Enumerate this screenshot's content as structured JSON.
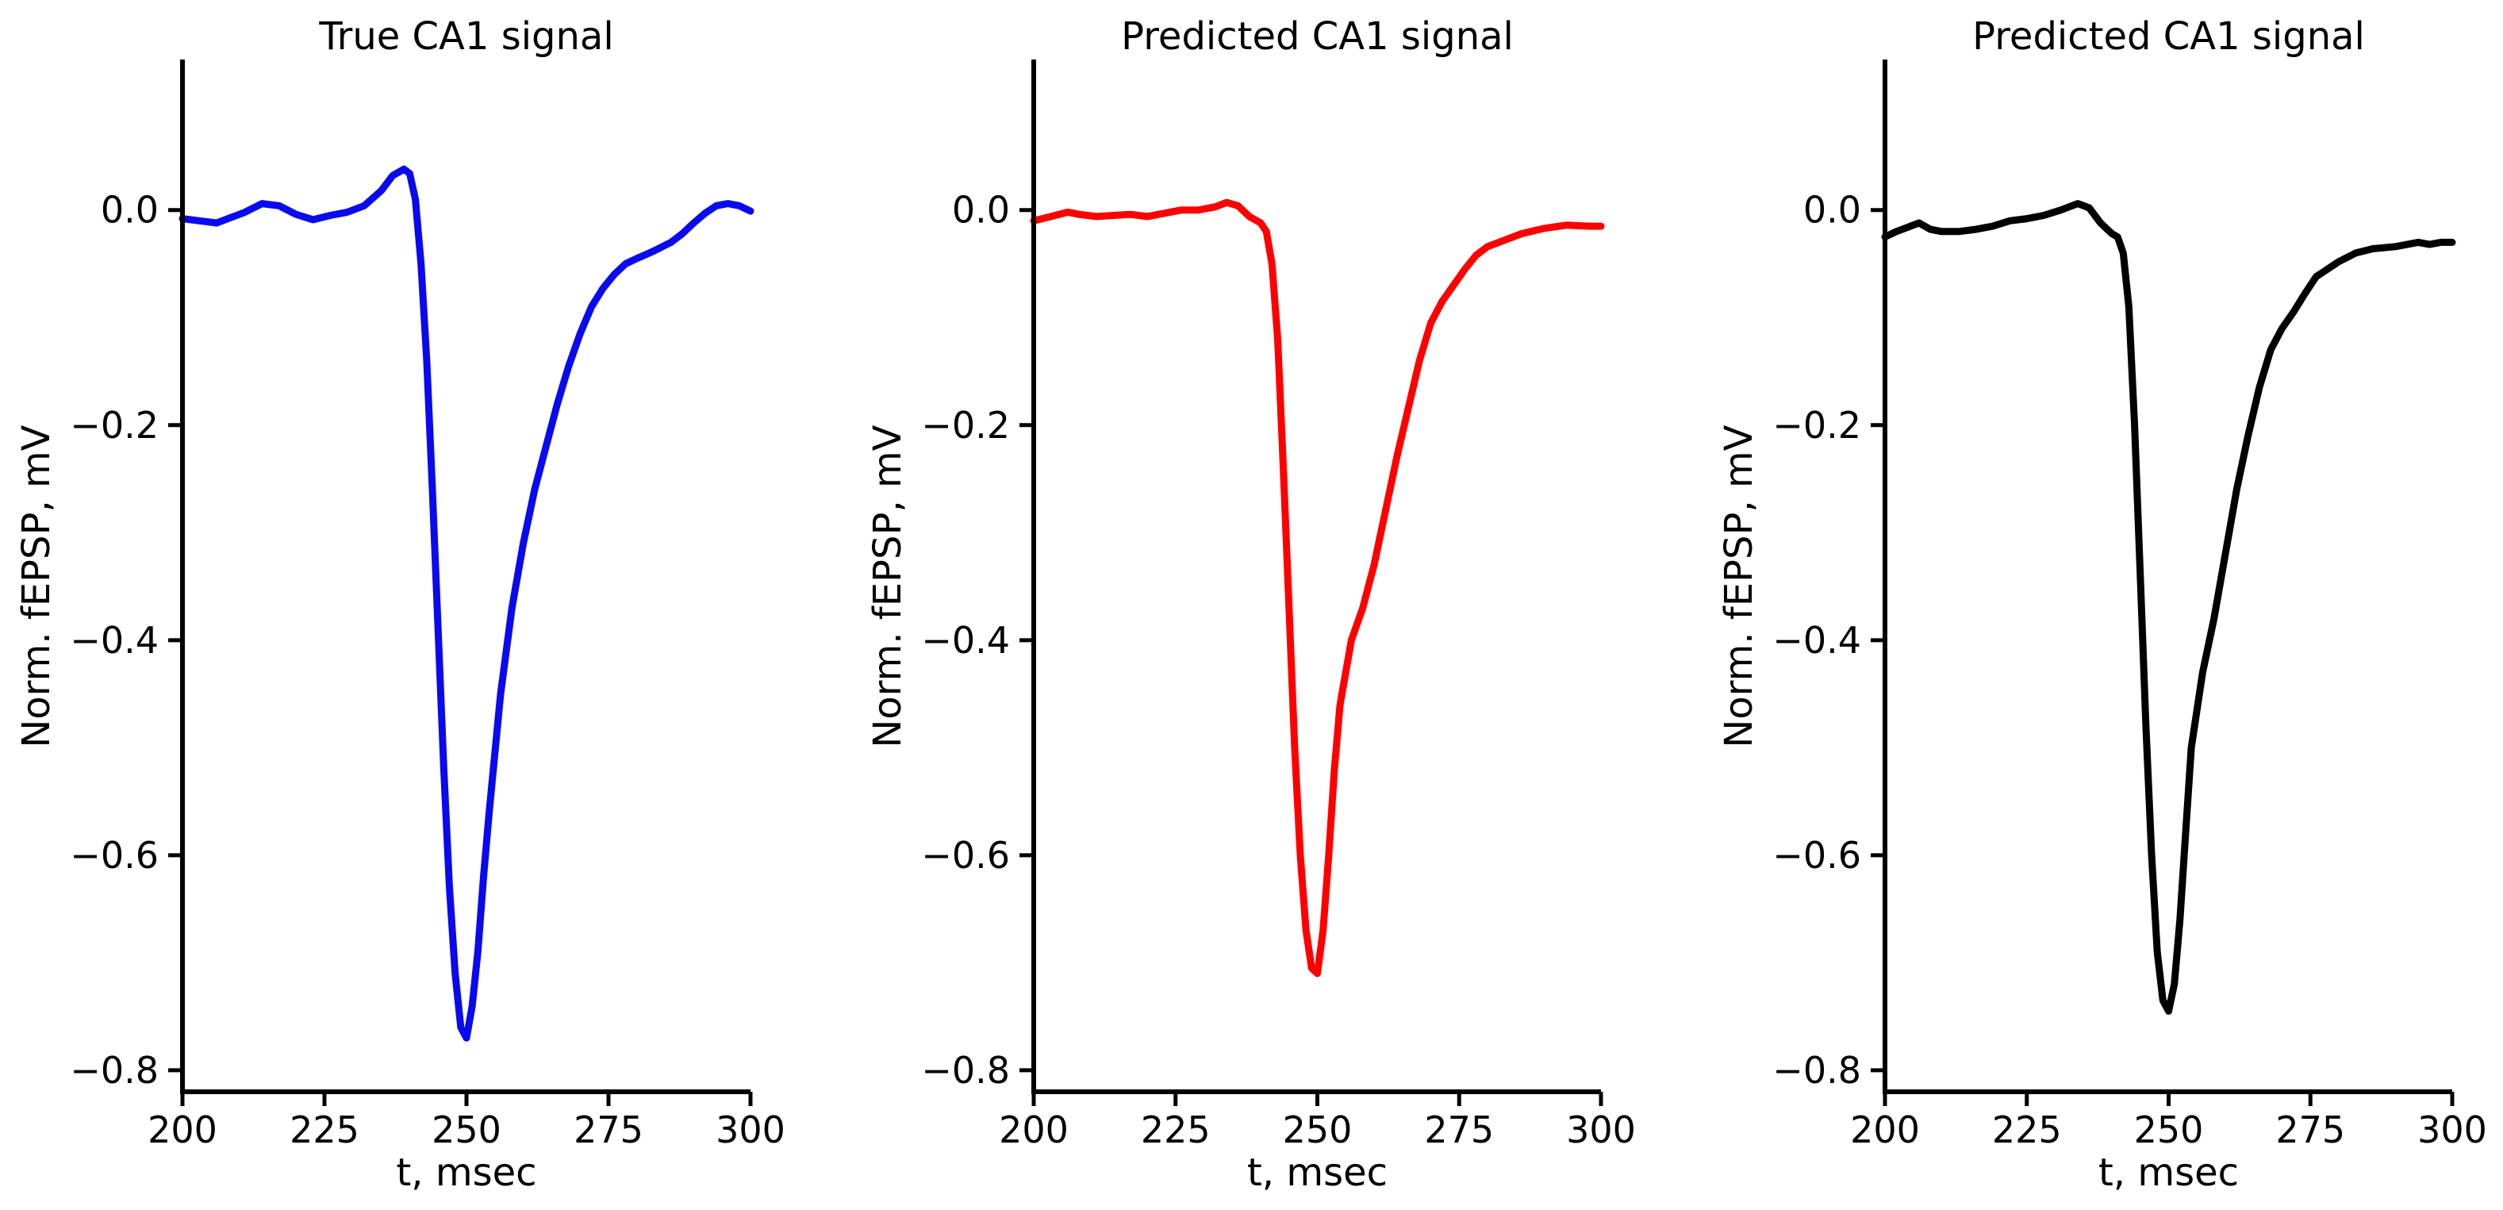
{
  "chart_data": [
    {
      "type": "line",
      "title": "True CA1 signal",
      "xlabel": "t, msec",
      "ylabel": "Norm. fEPSP, mV",
      "xlim": [
        200,
        300
      ],
      "ylim": [
        -0.82,
        0.14
      ],
      "xticks": [
        200,
        225,
        250,
        275,
        300
      ],
      "xtick_labels": [
        "200",
        "225",
        "250",
        "275",
        "300"
      ],
      "yticks": [
        0.0,
        -0.2,
        -0.4,
        -0.6,
        -0.8
      ],
      "ytick_labels": [
        "0.0",
        "−0.2",
        "−0.4",
        "−0.6",
        "−0.8"
      ],
      "color": "#0a0af0",
      "series": [
        {
          "x": [
            200,
            203,
            206,
            208,
            211,
            214,
            217,
            220,
            223,
            226,
            229,
            232,
            235,
            237,
            239,
            240,
            241,
            242,
            243,
            244,
            245,
            246,
            247,
            248,
            249,
            250,
            251,
            252,
            253,
            254,
            256,
            258,
            260,
            262,
            264,
            266,
            268,
            270,
            272,
            274,
            276,
            278,
            280,
            283,
            286,
            288,
            290,
            292,
            294,
            296,
            298,
            300
          ],
          "y": [
            -0.008,
            -0.01,
            -0.012,
            -0.008,
            -0.002,
            0.006,
            0.004,
            -0.004,
            -0.009,
            -0.005,
            -0.002,
            0.004,
            0.018,
            0.032,
            0.038,
            0.034,
            0.01,
            -0.05,
            -0.14,
            -0.26,
            -0.39,
            -0.52,
            -0.63,
            -0.71,
            -0.76,
            -0.77,
            -0.74,
            -0.69,
            -0.62,
            -0.56,
            -0.45,
            -0.37,
            -0.31,
            -0.26,
            -0.22,
            -0.18,
            -0.145,
            -0.115,
            -0.09,
            -0.073,
            -0.06,
            -0.05,
            -0.045,
            -0.038,
            -0.03,
            -0.022,
            -0.012,
            -0.003,
            0.004,
            0.006,
            0.004,
            -0.001
          ]
        }
      ]
    },
    {
      "type": "line",
      "title": "Predicted CA1 signal",
      "xlabel": "t, msec",
      "ylabel": "Norm. fEPSP, mV",
      "xlim": [
        200,
        300
      ],
      "ylim": [
        -0.82,
        0.14
      ],
      "xticks": [
        200,
        225,
        250,
        275,
        300
      ],
      "xtick_labels": [
        "200",
        "225",
        "250",
        "275",
        "300"
      ],
      "yticks": [
        0.0,
        -0.2,
        -0.4,
        -0.6,
        -0.8
      ],
      "ytick_labels": [
        "0.0",
        "−0.2",
        "−0.4",
        "−0.6",
        "−0.8"
      ],
      "color": "#ff0000",
      "series": [
        {
          "x": [
            200,
            203,
            206,
            208,
            211,
            214,
            217,
            220,
            223,
            226,
            229,
            232,
            234,
            236,
            238,
            240,
            241,
            242,
            243,
            244,
            245,
            246,
            247,
            248,
            249,
            250,
            251,
            252,
            253,
            254,
            256,
            258,
            260,
            262,
            264,
            266,
            268,
            270,
            272,
            274,
            276,
            278,
            280,
            283,
            286,
            290,
            294,
            298,
            300
          ],
          "y": [
            -0.01,
            -0.006,
            -0.002,
            -0.004,
            -0.006,
            -0.005,
            -0.004,
            -0.006,
            -0.003,
            0.0,
            0.0,
            0.003,
            0.007,
            0.004,
            -0.006,
            -0.012,
            -0.02,
            -0.05,
            -0.12,
            -0.24,
            -0.37,
            -0.5,
            -0.6,
            -0.67,
            -0.705,
            -0.71,
            -0.67,
            -0.6,
            -0.52,
            -0.46,
            -0.4,
            -0.37,
            -0.33,
            -0.28,
            -0.23,
            -0.185,
            -0.14,
            -0.105,
            -0.085,
            -0.07,
            -0.055,
            -0.042,
            -0.034,
            -0.028,
            -0.022,
            -0.017,
            -0.014,
            -0.015,
            -0.015
          ]
        }
      ]
    },
    {
      "type": "line",
      "title": "Predicted CA1 signal",
      "xlabel": "t, msec",
      "ylabel": "Norm. fEPSP, mV",
      "xlim": [
        200,
        300
      ],
      "ylim": [
        -0.82,
        0.14
      ],
      "xticks": [
        200,
        225,
        250,
        275,
        300
      ],
      "xtick_labels": [
        "200",
        "225",
        "250",
        "275",
        "300"
      ],
      "yticks": [
        0.0,
        -0.2,
        -0.4,
        -0.6,
        -0.8
      ],
      "ytick_labels": [
        "0.0",
        "−0.2",
        "−0.4",
        "−0.6",
        "−0.8"
      ],
      "color": "#000000",
      "series": [
        {
          "x": [
            200,
            202,
            204,
            206,
            208,
            210,
            213,
            216,
            219,
            222,
            225,
            228,
            231,
            234,
            236,
            238,
            240,
            241,
            242,
            243,
            244,
            245,
            246,
            247,
            248,
            249,
            250,
            251,
            252,
            253,
            254,
            256,
            258,
            260,
            262,
            264,
            266,
            268,
            270,
            272,
            274,
            276,
            278,
            280,
            283,
            286,
            290,
            294,
            296,
            298,
            300
          ],
          "y": [
            -0.025,
            -0.02,
            -0.016,
            -0.012,
            -0.018,
            -0.02,
            -0.02,
            -0.018,
            -0.015,
            -0.01,
            -0.008,
            -0.005,
            0.0,
            0.006,
            0.002,
            -0.012,
            -0.022,
            -0.025,
            -0.04,
            -0.09,
            -0.2,
            -0.34,
            -0.48,
            -0.6,
            -0.69,
            -0.735,
            -0.745,
            -0.72,
            -0.66,
            -0.58,
            -0.5,
            -0.43,
            -0.38,
            -0.32,
            -0.26,
            -0.21,
            -0.165,
            -0.13,
            -0.11,
            -0.095,
            -0.078,
            -0.062,
            -0.055,
            -0.048,
            -0.04,
            -0.036,
            -0.034,
            -0.03,
            -0.032,
            -0.03,
            -0.03
          ]
        }
      ]
    }
  ]
}
